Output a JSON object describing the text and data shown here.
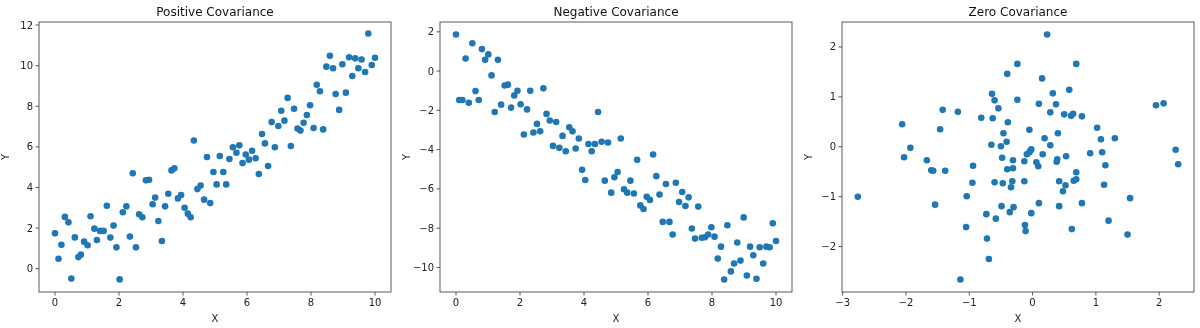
{
  "chart_data": [
    {
      "type": "scatter",
      "title": "Positive Covariance",
      "xlabel": "X",
      "ylabel": "Y",
      "marker": "circle",
      "xlim": [
        -0.5,
        10.5
      ],
      "ylim": [
        -1.15,
        12.15
      ],
      "xticks": [
        0,
        2,
        4,
        6,
        8,
        10
      ],
      "yticks": [
        0,
        2,
        4,
        6,
        8,
        10,
        12
      ],
      "series": [
        {
          "color": "#1f77b4",
          "x": [
            0,
            0.11,
            0.2,
            0.31,
            0.42,
            0.51,
            0.62,
            0.73,
            0.81,
            0.91,
            1.02,
            1.11,
            1.23,
            1.31,
            1.41,
            1.52,
            1.62,
            1.73,
            1.83,
            1.92,
            2.02,
            2.12,
            2.23,
            2.34,
            2.43,
            2.53,
            2.63,
            2.73,
            2.84,
            2.94,
            3.05,
            3.13,
            3.23,
            3.34,
            3.44,
            3.54,
            3.64,
            3.73,
            3.84,
            3.94,
            4.05,
            4.15,
            4.24,
            4.34,
            4.45,
            4.55,
            4.66,
            4.75,
            4.85,
            4.95,
            5.05,
            5.15,
            5.26,
            5.35,
            5.45,
            5.56,
            5.67,
            5.76,
            5.86,
            5.96,
            6.06,
            6.16,
            6.27,
            6.37,
            6.47,
            6.56,
            6.66,
            6.77,
            6.87,
            6.98,
            7.07,
            7.17,
            7.27,
            7.37,
            7.47,
            7.58,
            7.67,
            7.77,
            7.87,
            7.97,
            8.08,
            8.18,
            8.28,
            8.38,
            8.48,
            8.59,
            8.69,
            8.77,
            8.88,
            8.98,
            9.09,
            9.19,
            9.29,
            9.38,
            9.48,
            9.58,
            9.69,
            9.79,
            9.9,
            10
          ],
          "values": [
            1.74,
            0.49,
            1.18,
            2.55,
            2.28,
            -0.49,
            1.54,
            0.57,
            0.69,
            1.33,
            1.15,
            2.58,
            1.97,
            1.41,
            1.86,
            1.86,
            3.1,
            1.53,
            2.12,
            1.05,
            -0.53,
            2.78,
            3.07,
            1.58,
            4.7,
            1.05,
            2.68,
            2.53,
            4.35,
            4.38,
            3.17,
            3.5,
            2.35,
            1.36,
            3.07,
            3.69,
            4.84,
            4.94,
            3.46,
            3.63,
            3.0,
            2.71,
            2.53,
            6.31,
            3.92,
            4.09,
            3.4,
            5.5,
            3.23,
            4.76,
            4.15,
            5.55,
            4.76,
            4.15,
            5.4,
            5.98,
            5.71,
            6.08,
            5.2,
            5.62,
            5.37,
            5.81,
            5.44,
            4.66,
            6.63,
            6.17,
            5.06,
            7.22,
            5.98,
            7.03,
            7.78,
            7.29,
            8.41,
            6.04,
            7.88,
            6.9,
            6.8,
            7.19,
            7.57,
            8.05,
            6.93,
            9.06,
            8.74,
            6.86,
            9.95,
            10.49,
            9.87,
            8.6,
            7.82,
            10.07,
            8.67,
            10.41,
            9.49,
            10.36,
            9.87,
            10.3,
            9.69,
            11.58,
            10.03,
            10.39
          ]
        }
      ]
    },
    {
      "type": "scatter",
      "title": "Negative Covariance",
      "xlabel": "X",
      "ylabel": "Y",
      "marker": "circle",
      "xlim": [
        -0.5,
        10.5
      ],
      "ylim": [
        -11.25,
        2.5
      ],
      "xticks": [
        0,
        2,
        4,
        6,
        8,
        10
      ],
      "yticks": [
        {
          "value": -10,
          "label": "−10"
        },
        {
          "value": -8,
          "label": "−8"
        },
        {
          "value": -6,
          "label": "−6"
        },
        {
          "value": -4,
          "label": "−4"
        },
        {
          "value": -2,
          "label": "−2"
        },
        0,
        2
      ],
      "series": [
        {
          "color": "#1f77b4",
          "x": [
            0,
            0.1,
            0.2,
            0.3,
            0.4,
            0.51,
            0.61,
            0.71,
            0.81,
            0.91,
            1.01,
            1.11,
            1.21,
            1.31,
            1.41,
            1.52,
            1.62,
            1.72,
            1.82,
            1.92,
            2.02,
            2.12,
            2.22,
            2.32,
            2.42,
            2.53,
            2.63,
            2.73,
            2.83,
            2.93,
            3.03,
            3.13,
            3.23,
            3.33,
            3.43,
            3.54,
            3.64,
            3.74,
            3.84,
            3.94,
            4.04,
            4.14,
            4.24,
            4.34,
            4.44,
            4.55,
            4.65,
            4.75,
            4.85,
            4.95,
            5.05,
            5.15,
            5.25,
            5.35,
            5.45,
            5.56,
            5.66,
            5.76,
            5.86,
            5.96,
            6.06,
            6.16,
            6.26,
            6.36,
            6.46,
            6.56,
            6.67,
            6.77,
            6.87,
            6.97,
            7.07,
            7.17,
            7.27,
            7.37,
            7.47,
            7.57,
            7.68,
            7.78,
            7.88,
            7.98,
            8.08,
            8.18,
            8.28,
            8.38,
            8.48,
            8.59,
            8.69,
            8.79,
            8.89,
            8.99,
            9.09,
            9.19,
            9.29,
            9.39,
            9.49,
            9.6,
            9.7,
            9.8,
            9.9,
            10
          ],
          "values": [
            1.86,
            -1.47,
            -1.47,
            0.64,
            -1.61,
            1.42,
            -1.02,
            -1.47,
            1.12,
            0.58,
            0.85,
            -0.22,
            -2.08,
            0.58,
            -1.71,
            -0.73,
            -0.69,
            -1.86,
            -1.24,
            -1.0,
            -1.69,
            -3.23,
            -1.95,
            -1.0,
            -3.13,
            -2.69,
            -3.06,
            -0.88,
            -2.18,
            -2.52,
            -3.81,
            -2.59,
            -3.91,
            -3.3,
            -4.08,
            -2.86,
            -3.06,
            -3.94,
            -3.43,
            -5.03,
            -5.55,
            -3.71,
            -4.08,
            -3.71,
            -2.08,
            -3.6,
            -5.58,
            -3.64,
            -6.19,
            -5.41,
            -5.14,
            -3.43,
            -6.02,
            -6.19,
            -5.58,
            -6.23,
            -4.52,
            -6.84,
            -7.02,
            -6.4,
            -6.56,
            -4.25,
            -5.35,
            -6.29,
            -7.68,
            -5.75,
            -7.68,
            -8.32,
            -5.69,
            -6.67,
            -6.16,
            -6.87,
            -6.43,
            -8.02,
            -8.53,
            -6.9,
            -8.49,
            -8.46,
            -8.32,
            -7.95,
            -8.43,
            -9.55,
            -8.94,
            -10.61,
            -7.85,
            -10.2,
            -9.8,
            -8.73,
            -9.65,
            -7.45,
            -10.41,
            -8.94,
            -9.38,
            -10.58,
            -8.97,
            -9.8,
            -8.94,
            -8.97,
            -7.75,
            -8.65
          ]
        }
      ]
    },
    {
      "type": "scatter",
      "title": "Zero Covariance",
      "xlabel": "X",
      "ylabel": "Y",
      "marker": "circle",
      "xlim": [
        -3.01,
        2.55
      ],
      "ylim": [
        -2.91,
        2.5
      ],
      "xticks": [
        {
          "value": -3,
          "label": "−3"
        },
        {
          "value": -2,
          "label": "−2"
        },
        {
          "value": -1,
          "label": "−1"
        },
        0,
        1,
        2
      ],
      "yticks": [
        {
          "value": -2,
          "label": "−2"
        },
        {
          "value": -1,
          "label": "−1"
        },
        0,
        1,
        2
      ],
      "series": [
        {
          "color": "#1f77b4",
          "x": [
            -2.76,
            -2.06,
            -2.03,
            -1.93,
            -1.67,
            -1.6,
            -1.57,
            -1.54,
            -1.46,
            -1.42,
            -1.38,
            -1.18,
            -1.14,
            -1.05,
            -1.04,
            -0.95,
            -0.94,
            -0.81,
            -0.73,
            -0.72,
            -0.69,
            -0.65,
            -0.64,
            -0.63,
            -0.6,
            -0.6,
            -0.58,
            -0.54,
            -0.5,
            -0.49,
            -0.48,
            -0.47,
            -0.46,
            -0.41,
            -0.4,
            -0.4,
            -0.39,
            -0.36,
            -0.34,
            -0.32,
            -0.31,
            -0.31,
            -0.3,
            -0.24,
            -0.24,
            -0.13,
            -0.13,
            -0.12,
            -0.11,
            -0.09,
            -0.05,
            -0.05,
            -0.03,
            -0.02,
            -0.02,
            0.06,
            0.09,
            0.1,
            0.1,
            0.15,
            0.16,
            0.19,
            0.23,
            0.28,
            0.28,
            0.32,
            0.37,
            0.38,
            0.39,
            0.4,
            0.42,
            0.42,
            0.48,
            0.5,
            0.52,
            0.53,
            0.58,
            0.61,
            0.62,
            0.64,
            0.65,
            0.69,
            0.69,
            0.69,
            0.78,
            0.78,
            0.91,
            1.02,
            1.08,
            1.1,
            1.13,
            1.15,
            1.2,
            1.3,
            1.5,
            1.54,
            1.95,
            2.07,
            2.26,
            2.3
          ],
          "values": [
            -1.0,
            0.45,
            -0.21,
            -0.02,
            -0.27,
            -0.47,
            -0.48,
            -1.16,
            0.35,
            0.74,
            -0.48,
            0.7,
            -2.66,
            -1.61,
            -0.99,
            -0.72,
            -0.38,
            0.58,
            -1.35,
            -1.84,
            -2.25,
            0.04,
            1.06,
            0.57,
            0.93,
            -0.71,
            -1.44,
            0.77,
            0.01,
            -1.19,
            -0.22,
            -0.73,
            0.27,
            0.1,
            -0.45,
            1.46,
            0.49,
            -1.31,
            -0.81,
            -0.69,
            -0.43,
            -0.27,
            -1.21,
            1.66,
            0.94,
            -0.29,
            -0.69,
            -1.57,
            -1.69,
            -0.15,
            0.34,
            -0.11,
            -0.07,
            -0.05,
            -1.33,
            -0.31,
            -0.39,
            0.86,
            -1.13,
            1.37,
            -0.15,
            0.17,
            2.25,
            0.03,
            0.69,
            1.07,
            0.85,
            -0.3,
            -0.25,
            0.27,
            -0.69,
            -1.19,
            -0.89,
            0.65,
            -0.77,
            -0.19,
            1.14,
            0.62,
            -1.65,
            0.66,
            -0.68,
            -0.65,
            1.66,
            -0.51,
            0.61,
            -1.13,
            -0.13,
            0.38,
            0.15,
            -0.11,
            -0.76,
            -0.37,
            -1.48,
            0.17,
            -1.76,
            -1.03,
            0.83,
            0.87,
            -0.06,
            -0.35
          ]
        }
      ]
    }
  ]
}
